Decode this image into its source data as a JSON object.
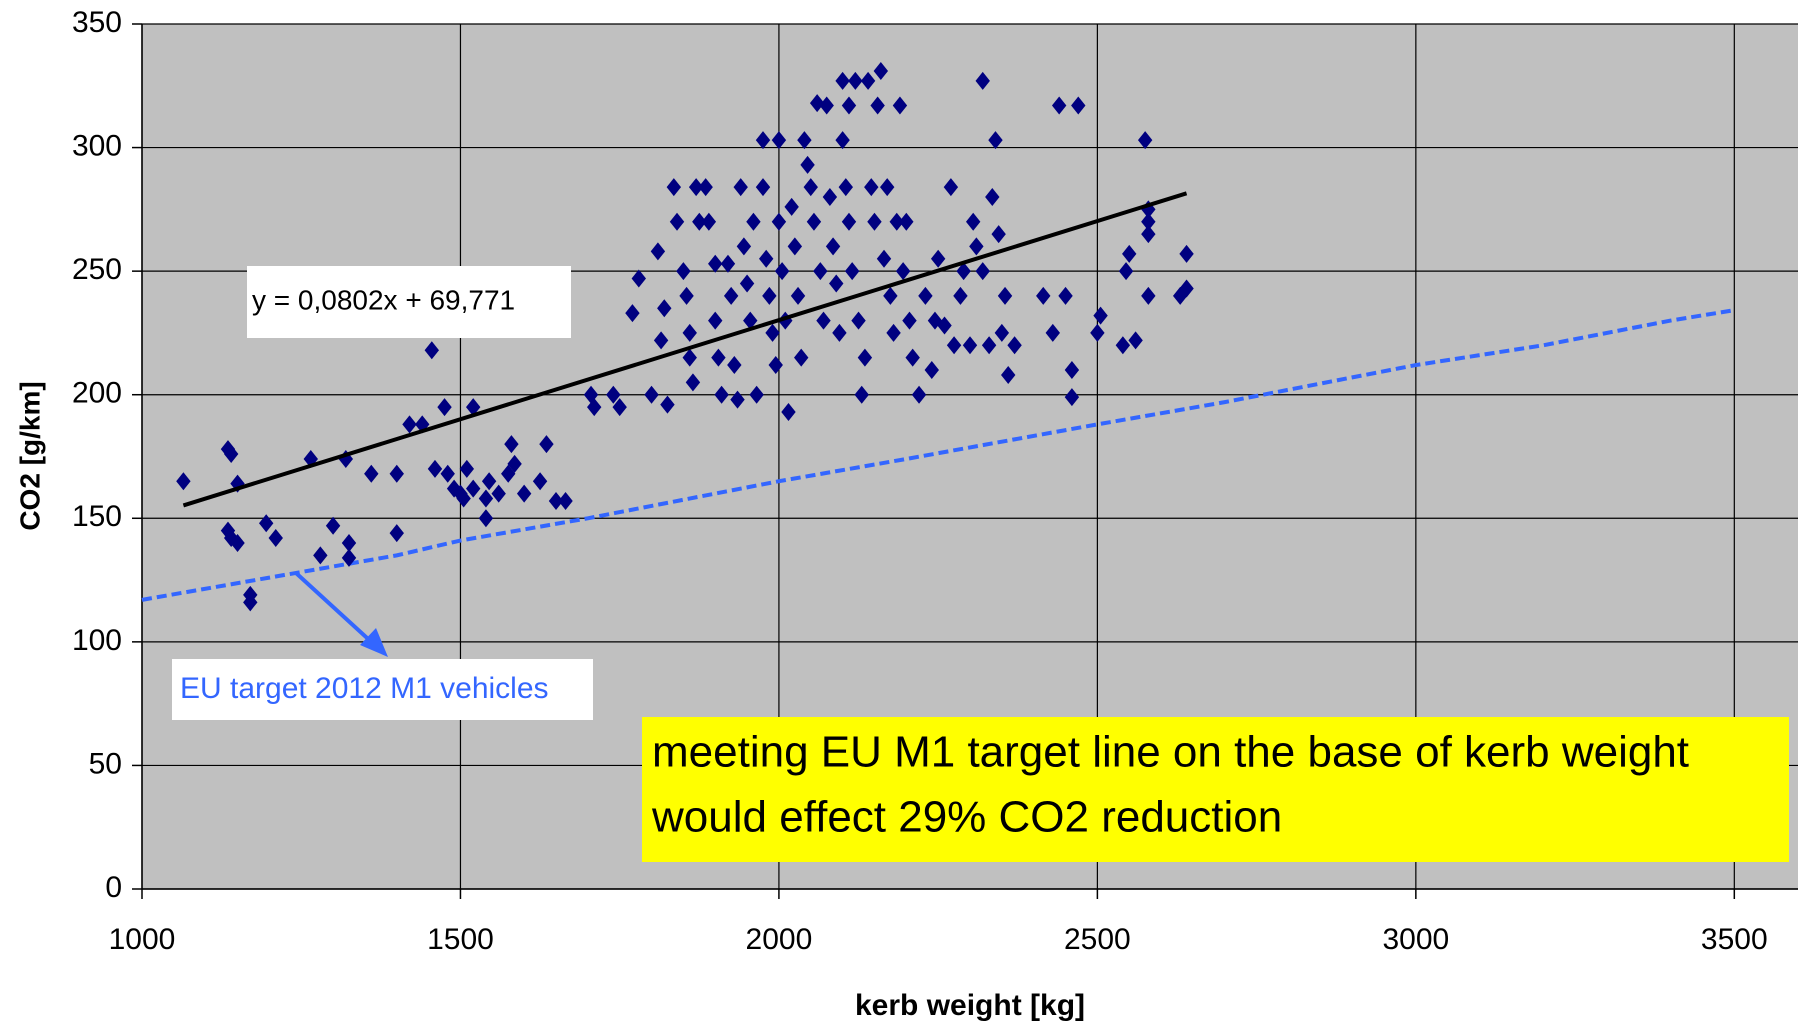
{
  "chart_data": {
    "type": "scatter",
    "x_label": "kerb weight [kg]",
    "y_label": "CO2 [g/km]",
    "xlim": [
      1000,
      3600
    ],
    "xticks": [
      1000,
      1500,
      2000,
      2500,
      3000,
      3500
    ],
    "ylim": [
      0,
      350
    ],
    "yticks": [
      0,
      50,
      100,
      150,
      200,
      250,
      300,
      350
    ],
    "grid": true,
    "color": "#000080",
    "x": [
      1065,
      1135,
      1140,
      1135,
      1140,
      1150,
      1150,
      1170,
      1170,
      1195,
      1210,
      1265,
      1280,
      1300,
      1320,
      1325,
      1325,
      1360,
      1400,
      1400,
      1420,
      1440,
      1455,
      1460,
      1475,
      1480,
      1490,
      1500,
      1505,
      1510,
      1520,
      1520,
      1540,
      1540,
      1545,
      1560,
      1575,
      1580,
      1585,
      1600,
      1625,
      1635,
      1650,
      1665,
      1705,
      1710,
      1740,
      1750,
      1770,
      1780,
      1800,
      1810,
      1815,
      1820,
      1825,
      1835,
      1840,
      1850,
      1855,
      1860,
      1860,
      1865,
      1870,
      1875,
      1885,
      1890,
      1900,
      1900,
      1905,
      1910,
      1920,
      1925,
      1930,
      1935,
      1940,
      1945,
      1950,
      1955,
      1960,
      1965,
      1975,
      1975,
      1980,
      1985,
      1990,
      1995,
      2000,
      2000,
      2005,
      2010,
      2015,
      2020,
      2025,
      2030,
      2035,
      2040,
      2045,
      2050,
      2055,
      2060,
      2065,
      2070,
      2075,
      2080,
      2085,
      2090,
      2095,
      2100,
      2100,
      2105,
      2110,
      2110,
      2115,
      2120,
      2125,
      2130,
      2135,
      2140,
      2145,
      2150,
      2155,
      2160,
      2165,
      2170,
      2175,
      2180,
      2185,
      2190,
      2195,
      2200,
      2205,
      2210,
      2220,
      2230,
      2240,
      2245,
      2250,
      2260,
      2270,
      2275,
      2285,
      2290,
      2300,
      2305,
      2310,
      2320,
      2320,
      2330,
      2335,
      2340,
      2345,
      2350,
      2355,
      2360,
      2370,
      2415,
      2430,
      2440,
      2450,
      2460,
      2460,
      2470,
      2500,
      2505,
      2540,
      2545,
      2550,
      2560,
      2575,
      2580,
      2580,
      2580,
      2580,
      2630,
      2640,
      2640
    ],
    "values": [
      165,
      178,
      176,
      145,
      142,
      164,
      140,
      119,
      116,
      148,
      142,
      174,
      135,
      147,
      174,
      140,
      134,
      168,
      168,
      144,
      188,
      188,
      218,
      170,
      195,
      168,
      162,
      160,
      158,
      170,
      195,
      162,
      158,
      150,
      165,
      160,
      168,
      180,
      172,
      160,
      165,
      180,
      157,
      157,
      200,
      195,
      200,
      195,
      233,
      247,
      200,
      258,
      222,
      235,
      196,
      284,
      270,
      250,
      240,
      225,
      215,
      205,
      284,
      270,
      284,
      270,
      253,
      230,
      215,
      200,
      253,
      240,
      212,
      198,
      284,
      260,
      245,
      230,
      270,
      200,
      303,
      284,
      255,
      240,
      225,
      212,
      303,
      270,
      250,
      230,
      193,
      276,
      260,
      240,
      215,
      303,
      293,
      284,
      270,
      318,
      250,
      230,
      317,
      280,
      260,
      245,
      225,
      303,
      327,
      284,
      317,
      270,
      250,
      327,
      230,
      200,
      215,
      327,
      284,
      270,
      317,
      331,
      255,
      284,
      240,
      225,
      270,
      317,
      250,
      270,
      230,
      215,
      200,
      240,
      210,
      230,
      255,
      228,
      284,
      220,
      240,
      250,
      220,
      270,
      260,
      327,
      250,
      220,
      280,
      303,
      265,
      225,
      240,
      208,
      220,
      240,
      225,
      317,
      240,
      210,
      199,
      317,
      225,
      232,
      220,
      250,
      257,
      222,
      303,
      270,
      265,
      275,
      240,
      240,
      243,
      257
    ],
    "trendline": {
      "label": "y = 0,0802x + 69,771",
      "color": "#000000",
      "x": [
        1065,
        2640
      ],
      "values": [
        155.2,
        281.5
      ]
    },
    "target_line": {
      "label": "EU target 2012 M1 vehicles",
      "color": "#3366ff",
      "x": [
        1000,
        1200,
        1400,
        1500,
        1700,
        1800,
        2000,
        2200,
        2500,
        2700,
        3000,
        3200,
        3400,
        3495
      ],
      "values": [
        117,
        126,
        135,
        141,
        150,
        155,
        165,
        174,
        188,
        197,
        212,
        220,
        230,
        234
      ]
    },
    "note": [
      "meeting EU M1 target line on the base of kerb weight",
      "would effect 29% CO2 reduction"
    ]
  }
}
